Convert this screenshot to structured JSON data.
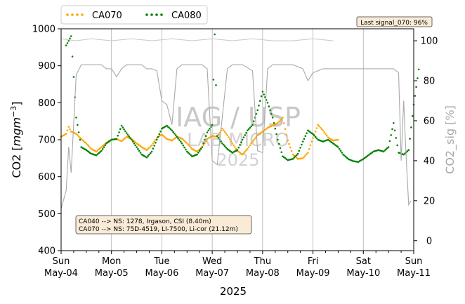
{
  "chart_data": {
    "type": "line",
    "title": "",
    "xlabel": "2025",
    "ylabel_left": "CO2 [mgm^-3]",
    "ylabel_right": "CO2_sig [%]",
    "ylim_left": [
      400,
      1000
    ],
    "ylim_right": [
      -5,
      106
    ],
    "yticks_left": [
      400,
      500,
      600,
      700,
      800,
      900,
      1000
    ],
    "yticks_right": [
      0,
      20,
      40,
      60,
      80,
      100
    ],
    "x_ticks": [
      {
        "day": "Sun",
        "date": "May-04"
      },
      {
        "day": "Mon",
        "date": "May-05"
      },
      {
        "day": "Tue",
        "date": "May-06"
      },
      {
        "day": "Wed",
        "date": "May-07"
      },
      {
        "day": "Thu",
        "date": "May-08"
      },
      {
        "day": "Fri",
        "date": "May-09"
      },
      {
        "day": "Sat",
        "date": "May-10"
      },
      {
        "day": "Sun",
        "date": "May-11"
      }
    ],
    "grid": "x-only",
    "legend_position": "top-left-outside",
    "series": [
      {
        "name": "CA070",
        "color": "#ffa500",
        "style": "dotted",
        "points": [
          [
            0.0,
            708
          ],
          [
            0.1,
            716
          ],
          [
            0.15,
            735
          ],
          [
            0.2,
            722
          ],
          [
            0.3,
            716
          ],
          [
            0.4,
            702
          ],
          [
            0.5,
            690
          ],
          [
            0.6,
            675
          ],
          [
            0.7,
            668
          ],
          [
            0.8,
            680
          ],
          [
            0.9,
            692
          ],
          [
            1.0,
            700
          ],
          [
            1.1,
            702
          ],
          [
            1.2,
            696
          ],
          [
            1.3,
            708
          ],
          [
            1.4,
            702
          ],
          [
            1.5,
            690
          ],
          [
            1.6,
            680
          ],
          [
            1.7,
            672
          ],
          [
            1.8,
            685
          ],
          [
            1.9,
            705
          ],
          [
            2.0,
            714
          ],
          [
            2.1,
            702
          ],
          [
            2.2,
            698
          ],
          [
            2.3,
            708
          ],
          [
            2.4,
            703
          ],
          [
            2.5,
            690
          ],
          [
            2.6,
            675
          ],
          [
            2.7,
            668
          ],
          [
            2.8,
            680
          ],
          [
            2.9,
            702
          ],
          [
            3.0,
            710
          ],
          [
            3.1,
            708
          ],
          [
            3.2,
            730
          ],
          [
            3.3,
            712
          ],
          [
            3.4,
            690
          ],
          [
            3.5,
            670
          ],
          [
            3.6,
            660
          ],
          [
            3.7,
            675
          ],
          [
            3.8,
            695
          ],
          [
            3.9,
            712
          ],
          [
            4.0,
            722
          ],
          [
            4.1,
            732
          ],
          [
            4.3,
            745
          ],
          [
            4.4,
            760
          ],
          [
            4.5,
            698
          ],
          [
            4.6,
            660
          ],
          [
            4.7,
            648
          ],
          [
            4.8,
            650
          ],
          [
            4.9,
            665
          ],
          [
            5.0,
            705
          ],
          [
            5.1,
            740
          ],
          [
            5.2,
            725
          ],
          [
            5.3,
            706
          ],
          [
            5.4,
            698
          ],
          [
            5.5,
            700
          ]
        ]
      },
      {
        "name": "CA080",
        "color": "#008000",
        "style": "dotted",
        "points": [
          [
            0.1,
            955
          ],
          [
            0.2,
            980
          ],
          [
            0.3,
            760
          ],
          [
            0.4,
            680
          ],
          [
            0.5,
            672
          ],
          [
            0.6,
            662
          ],
          [
            0.7,
            658
          ],
          [
            0.8,
            670
          ],
          [
            0.9,
            690
          ],
          [
            1.0,
            700
          ],
          [
            1.1,
            702
          ],
          [
            1.2,
            738
          ],
          [
            1.3,
            718
          ],
          [
            1.4,
            700
          ],
          [
            1.5,
            680
          ],
          [
            1.6,
            660
          ],
          [
            1.7,
            652
          ],
          [
            1.8,
            668
          ],
          [
            1.9,
            700
          ],
          [
            2.0,
            730
          ],
          [
            2.1,
            738
          ],
          [
            2.2,
            725
          ],
          [
            2.3,
            708
          ],
          [
            2.4,
            690
          ],
          [
            2.5,
            668
          ],
          [
            2.6,
            655
          ],
          [
            2.7,
            660
          ],
          [
            2.8,
            680
          ],
          [
            2.9,
            720
          ],
          [
            3.0,
            740
          ],
          [
            3.05,
            985
          ],
          [
            3.1,
            710
          ],
          [
            3.2,
            690
          ],
          [
            3.3,
            675
          ],
          [
            3.4,
            665
          ],
          [
            3.5,
            672
          ],
          [
            3.6,
            700
          ],
          [
            3.7,
            725
          ],
          [
            3.8,
            740
          ],
          [
            3.9,
            780
          ],
          [
            4.0,
            830
          ],
          [
            4.1,
            800
          ],
          [
            4.2,
            760
          ],
          [
            4.3,
            700
          ],
          [
            4.4,
            655
          ],
          [
            4.5,
            645
          ],
          [
            4.6,
            648
          ],
          [
            4.7,
            662
          ],
          [
            4.8,
            695
          ],
          [
            4.9,
            725
          ],
          [
            5.0,
            715
          ],
          [
            5.1,
            700
          ],
          [
            5.2,
            695
          ],
          [
            5.3,
            700
          ],
          [
            5.4,
            690
          ],
          [
            5.5,
            680
          ],
          [
            5.6,
            660
          ],
          [
            5.7,
            648
          ],
          [
            5.8,
            642
          ],
          [
            5.9,
            640
          ],
          [
            6.0,
            648
          ],
          [
            6.1,
            658
          ],
          [
            6.2,
            668
          ],
          [
            6.3,
            672
          ],
          [
            6.4,
            668
          ],
          [
            6.5,
            680
          ],
          [
            6.6,
            745
          ],
          [
            6.7,
            665
          ],
          [
            6.8,
            660
          ],
          [
            6.9,
            672
          ],
          [
            7.0,
            795
          ],
          [
            7.1,
            890
          ]
        ]
      },
      {
        "name": "sig_gray",
        "color": "#a9a9a9",
        "style": "solid",
        "axis": "right",
        "points": [
          [
            0.0,
            16
          ],
          [
            0.1,
            25
          ],
          [
            0.15,
            47
          ],
          [
            0.2,
            34
          ],
          [
            0.3,
            83
          ],
          [
            0.4,
            88
          ],
          [
            0.6,
            88
          ],
          [
            0.8,
            88
          ],
          [
            0.9,
            86
          ],
          [
            1.0,
            86
          ],
          [
            1.1,
            82
          ],
          [
            1.2,
            86
          ],
          [
            1.3,
            88
          ],
          [
            1.4,
            88
          ],
          [
            1.5,
            88
          ],
          [
            1.6,
            88
          ],
          [
            1.7,
            86
          ],
          [
            1.8,
            86
          ],
          [
            1.9,
            85
          ],
          [
            2.0,
            70
          ],
          [
            2.1,
            68
          ],
          [
            2.2,
            58
          ],
          [
            2.3,
            86
          ],
          [
            2.4,
            88
          ],
          [
            2.6,
            88
          ],
          [
            2.8,
            88
          ],
          [
            2.9,
            86
          ],
          [
            3.0,
            40
          ],
          [
            3.1,
            38
          ],
          [
            3.2,
            62
          ],
          [
            3.3,
            86
          ],
          [
            3.4,
            88
          ],
          [
            3.6,
            88
          ],
          [
            3.8,
            85
          ],
          [
            3.9,
            45
          ],
          [
            4.0,
            44
          ],
          [
            4.1,
            86
          ],
          [
            4.2,
            88
          ],
          [
            4.4,
            88
          ],
          [
            4.6,
            88
          ],
          [
            4.8,
            86
          ],
          [
            4.9,
            80
          ],
          [
            5.0,
            84
          ],
          [
            5.2,
            86
          ],
          [
            5.4,
            86
          ],
          [
            5.6,
            86
          ],
          [
            5.8,
            86
          ],
          [
            6.0,
            86
          ],
          [
            6.2,
            86
          ],
          [
            6.4,
            86
          ],
          [
            6.6,
            86
          ],
          [
            6.7,
            84
          ],
          [
            6.75,
            40
          ],
          [
            6.8,
            70
          ],
          [
            6.85,
            42
          ],
          [
            6.9,
            18
          ],
          [
            6.95,
            20
          ]
        ]
      },
      {
        "name": "sig_lightgray",
        "color": "#cccccc",
        "style": "solid",
        "axis": "right",
        "points": [
          [
            0.0,
            101
          ],
          [
            0.3,
            100
          ],
          [
            0.6,
            101
          ],
          [
            1.0,
            100
          ],
          [
            1.4,
            101
          ],
          [
            1.8,
            100
          ],
          [
            2.2,
            101
          ],
          [
            2.6,
            100
          ],
          [
            3.0,
            101
          ],
          [
            3.4,
            100
          ],
          [
            3.8,
            101
          ],
          [
            4.2,
            100
          ],
          [
            4.6,
            100
          ],
          [
            5.0,
            101
          ],
          [
            5.4,
            100
          ]
        ]
      }
    ],
    "annotations": {
      "last_signal": "Last signal_070: 96%",
      "info_line1": "CA040 --> NS: 1278, Irgason, CSI (8.40m)",
      "info_line2": "CA070 --> NS: 75D-4519, LI-7500, Li-cor (21.12m)"
    },
    "watermark": [
      "IAG / USP",
      "LAB MICRO",
      "2025"
    ]
  }
}
